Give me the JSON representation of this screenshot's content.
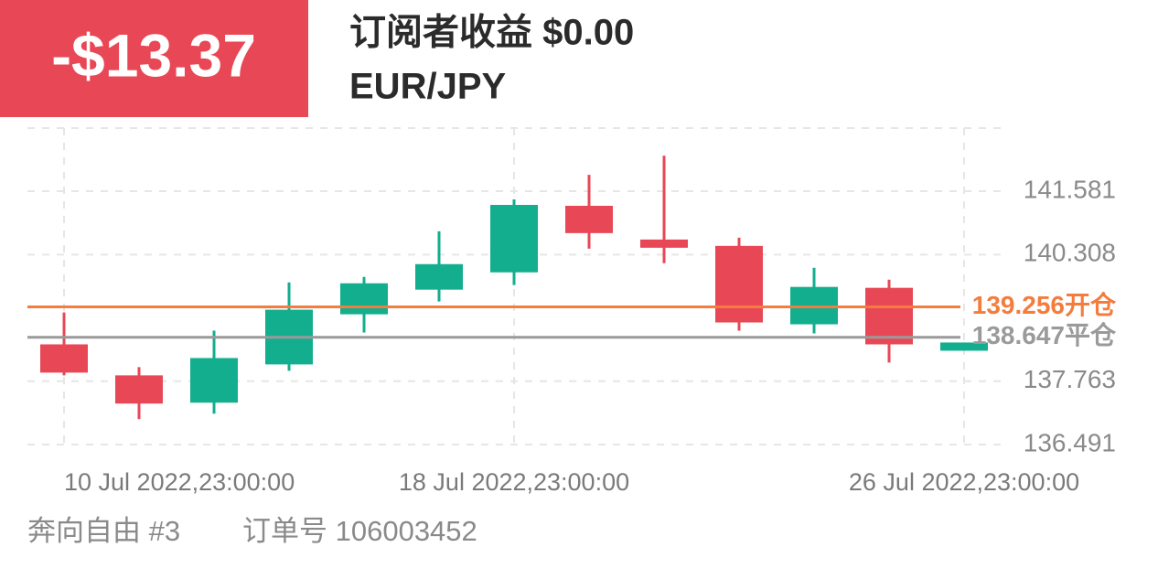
{
  "header": {
    "profit": "-$13.37",
    "subscriber_profit": "订阅者收益 $0.00",
    "symbol": "EUR/JPY"
  },
  "chart_data": {
    "type": "candlestick",
    "categories": [
      "10 Jul 2022,23:00:00",
      null,
      null,
      null,
      null,
      null,
      "18 Jul 2022,23:00:00",
      null,
      null,
      null,
      null,
      null,
      "26 Jul 2022,23:00:00"
    ],
    "open": [
      138.504,
      137.881,
      137.332,
      138.101,
      139.108,
      139.603,
      139.951,
      141.288,
      140.61,
      140.482,
      138.907,
      139.64,
      138.376
    ],
    "high": [
      139.145,
      138.046,
      138.779,
      139.749,
      139.859,
      140.775,
      141.416,
      141.911,
      142.295,
      140.647,
      140.043,
      139.804,
      138.541
    ],
    "low": [
      137.881,
      137.002,
      137.112,
      137.973,
      138.742,
      139.365,
      139.695,
      140.427,
      140.134,
      138.779,
      138.724,
      138.138,
      138.376
    ],
    "close": [
      137.936,
      137.314,
      138.229,
      139.2,
      139.731,
      140.116,
      141.306,
      140.739,
      140.445,
      138.944,
      139.658,
      138.504,
      138.541
    ],
    "up_color": "#13ae8e",
    "down_color": "#e84856",
    "ylim": [
      136.491,
      142.85
    ],
    "yticks": [
      136.491,
      137.763,
      140.308,
      141.581
    ],
    "grid": true,
    "lines": [
      {
        "value": 139.256,
        "label": "139.256开仓",
        "color": "#f47c3c"
      },
      {
        "value": 138.647,
        "label": "138.647平仓",
        "color": "#9a9a9a"
      }
    ]
  },
  "footer": {
    "strategy": "奔向自由 #3",
    "order": "订单号 106003452"
  }
}
